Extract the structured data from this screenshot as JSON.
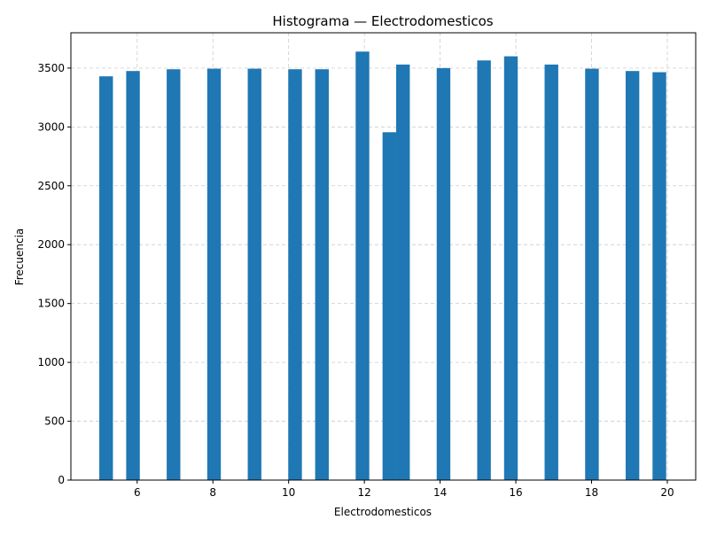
{
  "chart_data": {
    "type": "bar",
    "title": "Histograma — Electrodomesticos",
    "xlabel": "Electrodomesticos",
    "ylabel": "Frecuencia",
    "xlim": [
      4.25,
      20.75
    ],
    "ylim": [
      0,
      3800
    ],
    "xticks": [
      6,
      8,
      10,
      12,
      14,
      16,
      18,
      20
    ],
    "yticks": [
      0,
      500,
      1000,
      1500,
      2000,
      2500,
      3000,
      3500
    ],
    "grid": true,
    "bar_color": "#1f77b4",
    "grid_color": "#cccccc",
    "bin_width": 0.36,
    "bars": [
      {
        "x_start": 5.0,
        "value": 3430
      },
      {
        "x_start": 5.71,
        "value": 3475
      },
      {
        "x_start": 6.78,
        "value": 3490
      },
      {
        "x_start": 7.85,
        "value": 3495
      },
      {
        "x_start": 8.92,
        "value": 3495
      },
      {
        "x_start": 9.99,
        "value": 3490
      },
      {
        "x_start": 10.7,
        "value": 3490
      },
      {
        "x_start": 11.77,
        "value": 3640
      },
      {
        "x_start": 12.48,
        "value": 2955
      },
      {
        "x_start": 12.84,
        "value": 3530
      },
      {
        "x_start": 13.91,
        "value": 3500
      },
      {
        "x_start": 14.98,
        "value": 3565
      },
      {
        "x_start": 15.69,
        "value": 3600
      },
      {
        "x_start": 16.76,
        "value": 3530
      },
      {
        "x_start": 17.83,
        "value": 3495
      },
      {
        "x_start": 18.9,
        "value": 3475
      },
      {
        "x_start": 19.61,
        "value": 3465
      }
    ]
  }
}
